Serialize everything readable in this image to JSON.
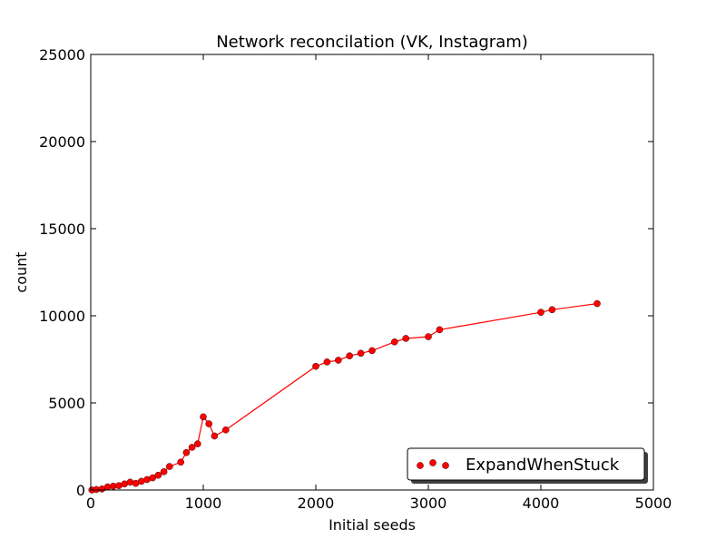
{
  "chart_data": {
    "type": "line",
    "title": "Network reconcilation (VK, Instagram)",
    "xlabel": "Initial seeds",
    "ylabel": "count",
    "xlim": [
      0,
      5000
    ],
    "ylim": [
      0,
      25000
    ],
    "xticks": [
      0,
      1000,
      2000,
      3000,
      4000,
      5000
    ],
    "yticks": [
      0,
      5000,
      10000,
      15000,
      20000,
      25000
    ],
    "xtick_labels": [
      "0",
      "1000",
      "2000",
      "3000",
      "4000",
      "5000"
    ],
    "ytick_labels": [
      "0",
      "5000",
      "10000",
      "15000",
      "20000",
      "25000"
    ],
    "grid": false,
    "legend_position": "lower-right",
    "series": [
      {
        "name": "ExpandWhenStuck",
        "color": "#ff0000",
        "marker": "circle",
        "x": [
          10,
          50,
          100,
          150,
          200,
          250,
          300,
          350,
          400,
          450,
          500,
          550,
          600,
          650,
          700,
          800,
          850,
          900,
          950,
          1000,
          1050,
          1100,
          1200,
          2000,
          2100,
          2200,
          2300,
          2400,
          2500,
          2700,
          2800,
          3000,
          3100,
          4000,
          4100,
          4500
        ],
        "y": [
          0,
          30,
          60,
          180,
          220,
          250,
          350,
          450,
          380,
          500,
          600,
          700,
          850,
          1050,
          1350,
          1600,
          2150,
          2450,
          2650,
          4200,
          3800,
          3100,
          3450,
          7100,
          7350,
          7450,
          7700,
          7850,
          8000,
          8500,
          8700,
          8800,
          9200,
          10200,
          10350,
          10700
        ]
      }
    ]
  }
}
